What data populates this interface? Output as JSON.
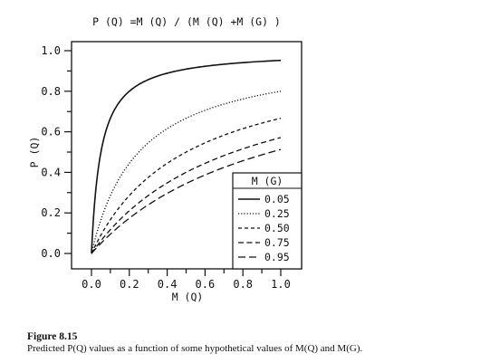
{
  "chart_data": {
    "type": "line",
    "title": "P (Q) =M (Q) / (M (Q) +M (G) )",
    "xlabel": "M (Q)",
    "ylabel": "P (Q)",
    "xlim": [
      0.0,
      1.0
    ],
    "ylim": [
      0.0,
      1.0
    ],
    "x_ticks": [
      "0.0",
      "0.2",
      "0.4",
      "0.6",
      "0.8",
      "1.0"
    ],
    "y_ticks": [
      "0.0",
      "0.2",
      "0.4",
      "0.6",
      "0.8",
      "1.0"
    ],
    "grid": false,
    "legend_title": "M (G)",
    "legend_position": "bottom-right",
    "series": [
      {
        "name": "0.05",
        "mg": 0.05,
        "style": "solid",
        "x": [
          0.0,
          0.05,
          0.1,
          0.2,
          0.4,
          0.6,
          0.8,
          1.0
        ],
        "y": [
          0.0,
          0.5,
          0.667,
          0.8,
          0.889,
          0.923,
          0.941,
          0.952
        ]
      },
      {
        "name": "0.25",
        "mg": 0.25,
        "style": "dotted",
        "x": [
          0.0,
          0.1,
          0.2,
          0.4,
          0.6,
          0.8,
          1.0
        ],
        "y": [
          0.0,
          0.286,
          0.444,
          0.615,
          0.706,
          0.762,
          0.8
        ]
      },
      {
        "name": "0.50",
        "mg": 0.5,
        "style": "dashed-short",
        "x": [
          0.0,
          0.2,
          0.4,
          0.6,
          0.8,
          1.0
        ],
        "y": [
          0.0,
          0.286,
          0.444,
          0.545,
          0.615,
          0.667
        ]
      },
      {
        "name": "0.75",
        "mg": 0.75,
        "style": "dashed-medium",
        "x": [
          0.0,
          0.2,
          0.4,
          0.6,
          0.8,
          1.0
        ],
        "y": [
          0.0,
          0.211,
          0.348,
          0.444,
          0.516,
          0.571
        ]
      },
      {
        "name": "0.95",
        "mg": 0.95,
        "style": "dashed-long",
        "x": [
          0.0,
          0.2,
          0.4,
          0.6,
          0.8,
          1.0
        ],
        "y": [
          0.0,
          0.174,
          0.296,
          0.387,
          0.457,
          0.513
        ]
      }
    ]
  },
  "caption": {
    "label": "Figure 8.15",
    "text": "Predicted P(Q) values as a function of some hypothetical values of M(Q) and M(G)."
  }
}
